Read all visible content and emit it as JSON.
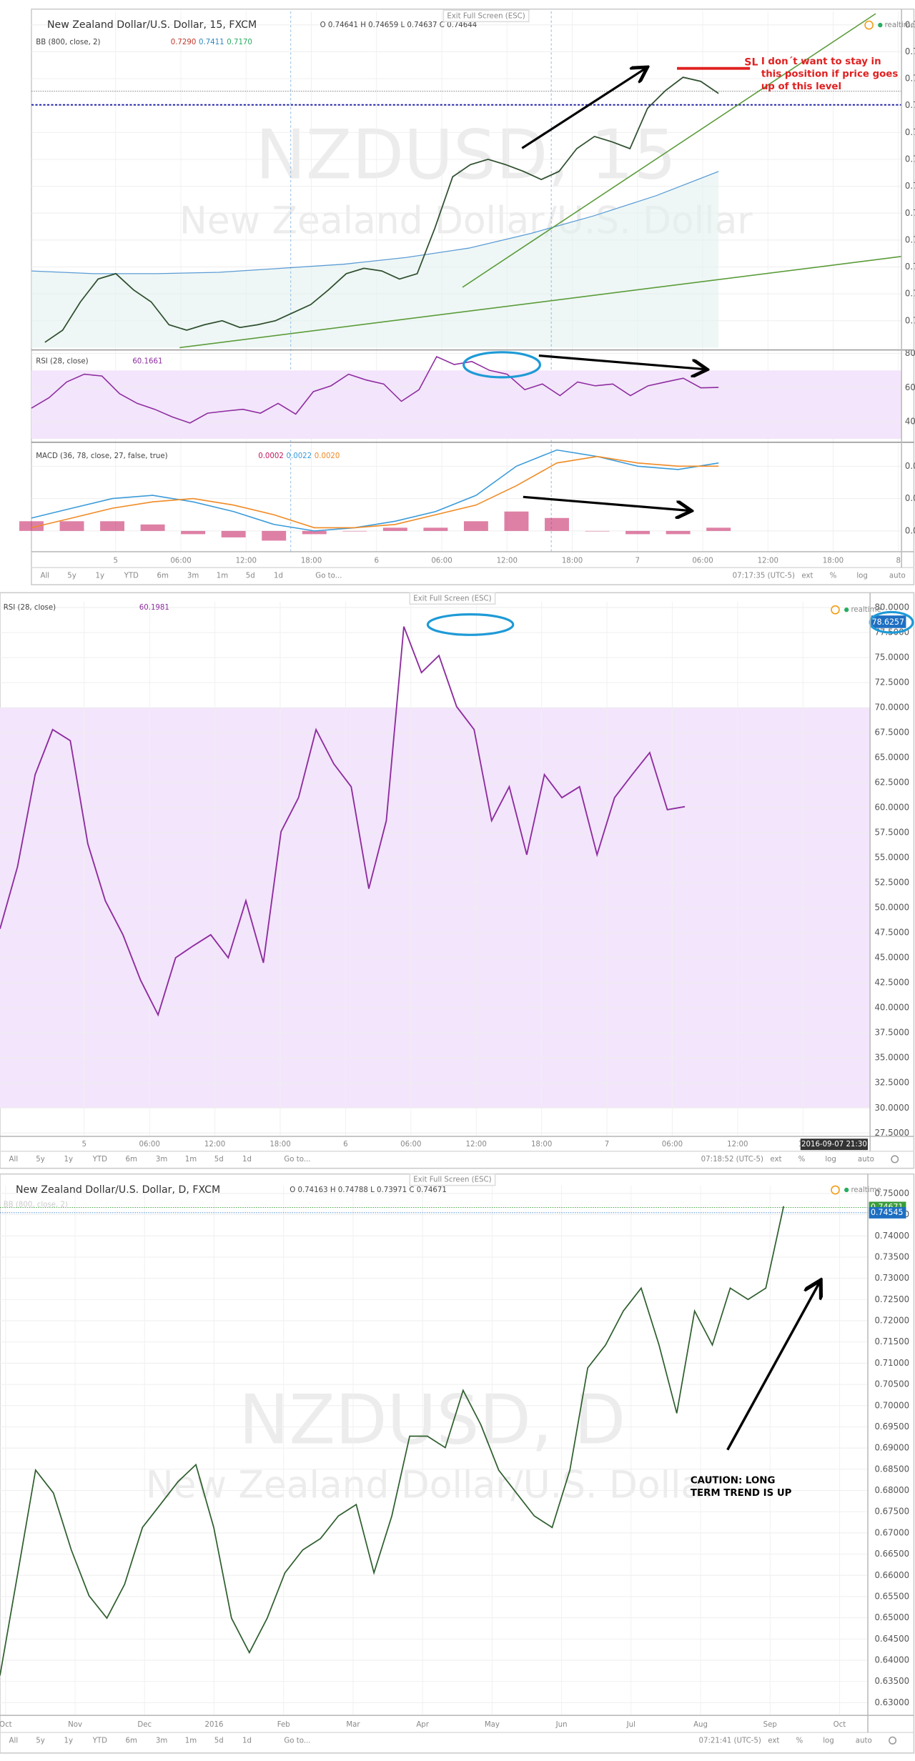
{
  "toolbar": {
    "ranges": [
      "All",
      "5y",
      "1y",
      "YTD",
      "6m",
      "3m",
      "1m",
      "5d",
      "1d",
      "Go to..."
    ],
    "ext": "ext",
    "pct": "%",
    "log": "log",
    "auto": "auto"
  },
  "intraday": {
    "title": "New Zealand Dollar/U.S. Dollar, 15, FXCM",
    "ohlc": "O 0.74641 H 0.74659 L 0.74637 C 0.74644",
    "exit": "Exit Full Screen (ESC)",
    "realtime": "realtime",
    "watermark_symbol": "NZDUSD, 15",
    "watermark_name": "New Zealand Dollar/U.S. Dollar",
    "bb_label": "BB (800, close, 2)",
    "bb_values": [
      "0.7290",
      "0.7411",
      "0.7170"
    ],
    "price": {
      "ylim": [
        0.723,
        0.748
      ],
      "yticks": [
        {
          "value": 0.747,
          "label": "0.7"
        },
        {
          "value": 0.745,
          "label": "0.7"
        },
        {
          "value": 0.743,
          "label": "0.7"
        },
        {
          "value": 0.741,
          "label": "0.7"
        },
        {
          "value": 0.739,
          "label": "0.7"
        },
        {
          "value": 0.737,
          "label": "0.7"
        },
        {
          "value": 0.735,
          "label": "0.7"
        },
        {
          "value": 0.733,
          "label": "0.7"
        },
        {
          "value": 0.731,
          "label": "0.7"
        },
        {
          "value": 0.729,
          "label": "0.7"
        },
        {
          "value": 0.727,
          "label": "0.7"
        },
        {
          "value": 0.725,
          "label": "0.7"
        }
      ],
      "values": [
        0.7234,
        0.7243,
        0.7264,
        0.7281,
        0.7285,
        0.7273,
        0.7264,
        0.7247,
        0.7243,
        0.7247,
        0.725,
        0.7245,
        0.7247,
        0.725,
        0.7256,
        0.7262,
        0.7273,
        0.7285,
        0.7289,
        0.7287,
        0.7281,
        0.7285,
        0.7319,
        0.7357,
        0.7366,
        0.737,
        0.7366,
        0.7361,
        0.7355,
        0.7361,
        0.7378,
        0.7387,
        0.7383,
        0.7378,
        0.7408,
        0.7421,
        0.7431,
        0.7428,
        0.7419
      ],
      "bb_basis": [
        0.7287,
        0.7285,
        0.7285,
        0.7286,
        0.7289,
        0.7292,
        0.7297,
        0.7304,
        0.7315,
        0.7328,
        0.7343,
        0.7361
      ]
    },
    "rsi": {
      "label": "RSI (28, close)",
      "value_text": "60.1661",
      "ylim": [
        28,
        82
      ],
      "yticks": [
        80,
        60,
        40
      ],
      "band": [
        30,
        70
      ],
      "values": [
        47.9,
        54.1,
        63.3,
        67.8,
        66.7,
        56.4,
        50.7,
        47.3,
        42.8,
        39.3,
        45.0,
        46.2,
        47.3,
        45.0,
        50.7,
        44.5,
        57.6,
        61.0,
        67.8,
        64.4,
        62.1,
        51.9,
        58.7,
        78.1,
        73.5,
        75.2,
        70.1,
        67.8,
        58.7,
        62.1,
        55.3,
        63.3,
        61.0,
        62.1,
        55.3,
        61.0,
        63.3,
        65.5,
        59.8,
        60.1
      ]
    },
    "macd": {
      "label": "MACD (36, 78, close, 27, false, true)",
      "values_text": [
        "0.0002",
        "0.0022",
        "0.0020"
      ],
      "ylim": [
        -0.0005,
        0.0026
      ],
      "yticks": [
        {
          "value": 0.002,
          "label": "0.0"
        },
        {
          "value": 0.001,
          "label": "0.0"
        },
        {
          "value": 0.0,
          "label": "0.0"
        }
      ],
      "macd": [
        0.0004,
        0.0007,
        0.001,
        0.0011,
        0.0009,
        0.0006,
        0.0002,
        0.0,
        0.0001,
        0.0003,
        0.0006,
        0.0011,
        0.002,
        0.0025,
        0.0023,
        0.002,
        0.0019,
        0.0021
      ],
      "signal": [
        0.0001,
        0.0004,
        0.0007,
        0.0009,
        0.001,
        0.0008,
        0.0005,
        0.0001,
        0.0001,
        0.0002,
        0.0005,
        0.0008,
        0.0014,
        0.0021,
        0.0023,
        0.0021,
        0.002,
        0.002
      ],
      "histogram": [
        0.0003,
        0.0003,
        0.0003,
        0.0002,
        -0.0001,
        -0.0002,
        -0.0003,
        -0.0001,
        0.0,
        0.0001,
        0.0001,
        0.0003,
        0.0006,
        0.0004,
        0.0,
        -0.0001,
        -0.0001,
        0.0001
      ]
    },
    "sl": "SL",
    "note": [
      "I don´t want to stay in",
      "this position if price goes",
      "up of this level"
    ],
    "time_labels": [
      "5",
      "06:00",
      "12:00",
      "18:00",
      "6",
      "06:00",
      "12:00",
      "18:00",
      "7",
      "06:00",
      "12:00",
      "18:00",
      "8"
    ],
    "time": "07:17:35 (UTC-5)"
  },
  "rsi_fullscreen": {
    "label": "RSI (28, close)",
    "value_text": "60.1981",
    "exit": "Exit Full Screen (ESC)",
    "realtime": "realtime",
    "ylim": [
      27.5,
      80
    ],
    "band": [
      30,
      70
    ],
    "badge": "78.6257",
    "date_badge": "2016-09-07 21:30",
    "yticks": [
      {
        "value": 80,
        "label": "80.0000"
      },
      {
        "value": 77.5,
        "label": "77.5000"
      },
      {
        "value": 75,
        "label": "75.0000"
      },
      {
        "value": 72.5,
        "label": "72.5000"
      },
      {
        "value": 70,
        "label": "70.0000"
      },
      {
        "value": 67.5,
        "label": "67.5000"
      },
      {
        "value": 65,
        "label": "65.0000"
      },
      {
        "value": 62.5,
        "label": "62.5000"
      },
      {
        "value": 60,
        "label": "60.0000"
      },
      {
        "value": 57.5,
        "label": "57.5000"
      },
      {
        "value": 55,
        "label": "55.0000"
      },
      {
        "value": 52.5,
        "label": "52.5000"
      },
      {
        "value": 50,
        "label": "50.0000"
      },
      {
        "value": 47.5,
        "label": "47.5000"
      },
      {
        "value": 45,
        "label": "45.0000"
      },
      {
        "value": 42.5,
        "label": "42.5000"
      },
      {
        "value": 40,
        "label": "40.0000"
      },
      {
        "value": 37.5,
        "label": "37.5000"
      },
      {
        "value": 35,
        "label": "35.0000"
      },
      {
        "value": 32.5,
        "label": "32.5000"
      },
      {
        "value": 30,
        "label": "30.0000"
      },
      {
        "value": 27.5,
        "label": "27.5000"
      }
    ],
    "time_labels": [
      "5",
      "06:00",
      "12:00",
      "18:00",
      "6",
      "06:00",
      "12:00",
      "18:00",
      "7",
      "06:00",
      "12:00",
      "18"
    ],
    "time": "07:18:52 (UTC-5)"
  },
  "daily": {
    "title": "New Zealand Dollar/U.S. Dollar, D, FXCM",
    "ohlc": "O 0.74163 H 0.74788 L 0.73971 C 0.74671",
    "bb_label": "BB (800, close, 2)",
    "exit": "Exit Full Screen (ESC)",
    "realtime": "realtime",
    "watermark_symbol": "NZDUSD, D",
    "watermark_name": "New Zealand Dollar/U.S. Dollar",
    "ylim": [
      0.627,
      0.7519
    ],
    "yticks": [
      {
        "value": 0.75,
        "label": "0.75000"
      },
      {
        "value": 0.745,
        "label": "0.74500"
      },
      {
        "value": 0.74,
        "label": "0.74000"
      },
      {
        "value": 0.735,
        "label": "0.73500"
      },
      {
        "value": 0.73,
        "label": "0.73000"
      },
      {
        "value": 0.725,
        "label": "0.72500"
      },
      {
        "value": 0.72,
        "label": "0.72000"
      },
      {
        "value": 0.715,
        "label": "0.71500"
      },
      {
        "value": 0.71,
        "label": "0.71000"
      },
      {
        "value": 0.705,
        "label": "0.70500"
      },
      {
        "value": 0.7,
        "label": "0.70000"
      },
      {
        "value": 0.695,
        "label": "0.69500"
      },
      {
        "value": 0.69,
        "label": "0.69000"
      },
      {
        "value": 0.685,
        "label": "0.68500"
      },
      {
        "value": 0.68,
        "label": "0.68000"
      },
      {
        "value": 0.675,
        "label": "0.67500"
      },
      {
        "value": 0.67,
        "label": "0.67000"
      },
      {
        "value": 0.665,
        "label": "0.66500"
      },
      {
        "value": 0.66,
        "label": "0.66000"
      },
      {
        "value": 0.655,
        "label": "0.65500"
      },
      {
        "value": 0.65,
        "label": "0.65000"
      },
      {
        "value": 0.645,
        "label": "0.64500"
      },
      {
        "value": 0.64,
        "label": "0.64000"
      },
      {
        "value": 0.635,
        "label": "0.63500"
      },
      {
        "value": 0.63,
        "label": "0.63000"
      }
    ],
    "values": [
      0.6364,
      0.6606,
      0.6848,
      0.6794,
      0.666,
      0.6552,
      0.6499,
      0.6579,
      0.6713,
      0.6767,
      0.6821,
      0.6861,
      0.6713,
      0.6499,
      0.6418,
      0.6499,
      0.6606,
      0.666,
      0.6687,
      0.674,
      0.6767,
      0.6606,
      0.674,
      0.6928,
      0.6928,
      0.6901,
      0.7036,
      0.6955,
      0.6848,
      0.6794,
      0.674,
      0.6713,
      0.6848,
      0.7089,
      0.7143,
      0.7223,
      0.7277,
      0.7143,
      0.6982,
      0.7223,
      0.7143,
      0.7277,
      0.725,
      0.7277,
      0.747
    ],
    "badges": [
      {
        "value": 0.74671,
        "label": "0.74671"
      },
      {
        "value": 0.74545,
        "label": "0.74545"
      }
    ],
    "note": [
      "CAUTION: LONG",
      "TERM TREND IS UP"
    ],
    "time_labels": [
      "Oct",
      "Nov",
      "Dec",
      "2016",
      "Feb",
      "Mar",
      "Apr",
      "May",
      "Jun",
      "Jul",
      "Aug",
      "Sep",
      "Oct"
    ],
    "time": "07:21:41 (UTC-5)"
  }
}
